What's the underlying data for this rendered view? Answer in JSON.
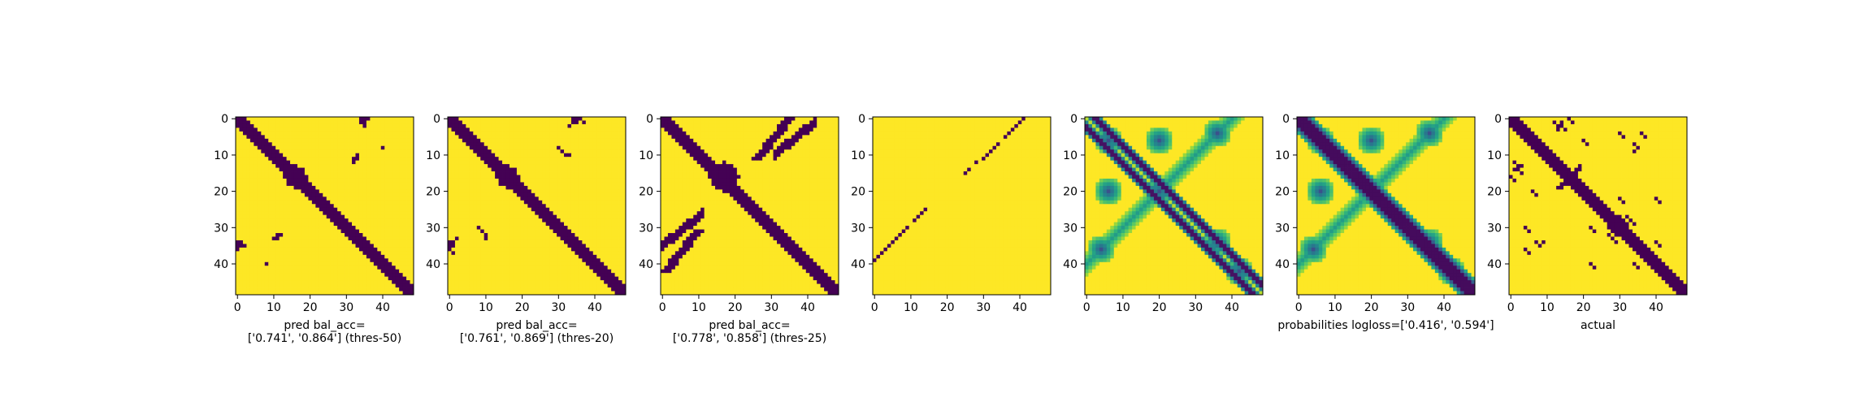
{
  "figure": {
    "background": "#ffffff",
    "colormap": "viridis",
    "matrix_size": 49
  },
  "chart_data": [
    {
      "type": "heatmap",
      "id": "panel-1",
      "xlabel_lines": [
        "pred bal_acc=",
        "['0.741', '0.864'] (thres-50)"
      ],
      "xticks": [
        0,
        10,
        20,
        30,
        40
      ],
      "yticks": [
        0,
        10,
        20,
        30,
        40
      ],
      "xlim": [
        0,
        48
      ],
      "ylim": [
        48,
        0
      ],
      "values_shape": [
        49,
        49
      ],
      "value_range": [
        0,
        1
      ],
      "description_values": {
        "diagonal_band_halfwidth": 2,
        "blobs": [
          {
            "row": 16,
            "col": 16,
            "r": 3
          }
        ],
        "secondary_points": [
          [
            0,
            35
          ],
          [
            0,
            36
          ],
          [
            1,
            34
          ],
          [
            1,
            35
          ],
          [
            10,
            33
          ],
          [
            11,
            32
          ],
          [
            8,
            40
          ],
          [
            34,
            0
          ],
          [
            35,
            1
          ],
          [
            36,
            0
          ],
          [
            35,
            2
          ],
          [
            33,
            11
          ],
          [
            32,
            12
          ]
        ]
      }
    },
    {
      "type": "heatmap",
      "id": "panel-2",
      "xlabel_lines": [
        "pred bal_acc=",
        "['0.761', '0.869'] (thres-20)"
      ],
      "xticks": [
        0,
        10,
        20,
        30,
        40
      ],
      "yticks": [
        0,
        10,
        20,
        30,
        40
      ],
      "xlim": [
        0,
        48
      ],
      "ylim": [
        48,
        0
      ],
      "values_shape": [
        49,
        49
      ],
      "value_range": [
        0,
        1
      ],
      "description_values": {
        "diagonal_band_halfwidth": 2,
        "blobs": [
          {
            "row": 16,
            "col": 16,
            "r": 3
          }
        ],
        "secondary_points": [
          [
            0,
            35
          ],
          [
            0,
            36
          ],
          [
            1,
            34
          ],
          [
            2,
            33
          ],
          [
            8,
            30
          ],
          [
            9,
            31
          ],
          [
            10,
            32
          ],
          [
            34,
            0
          ],
          [
            35,
            1
          ],
          [
            36,
            0
          ],
          [
            37,
            1
          ],
          [
            30,
            8
          ],
          [
            31,
            9
          ],
          [
            33,
            10
          ]
        ]
      }
    },
    {
      "type": "heatmap",
      "id": "panel-3",
      "xlabel_lines": [
        "pred bal_acc=",
        "['0.778', '0.858'] (thres-25)"
      ],
      "xticks": [
        0,
        10,
        20,
        30,
        40
      ],
      "yticks": [
        0,
        10,
        20,
        30,
        40
      ],
      "xlim": [
        0,
        48
      ],
      "ylim": [
        48,
        0
      ],
      "values_shape": [
        49,
        49
      ],
      "value_range": [
        0,
        1
      ],
      "description_values": {
        "diagonal_band_halfwidth": 2,
        "blobs": [
          {
            "row": 16,
            "col": 17,
            "r": 4
          }
        ],
        "antidiagonal_band": {
          "from": [
            0,
            35
          ],
          "to": [
            42,
            1
          ],
          "halfwidth": 1
        }
      }
    },
    {
      "type": "heatmap",
      "id": "panel-4",
      "xlabel_lines": [],
      "xticks": [
        0,
        10,
        20,
        30,
        40
      ],
      "yticks": [
        0,
        10,
        20,
        30,
        40
      ],
      "xlim": [
        0,
        48
      ],
      "ylim": [
        48,
        0
      ],
      "values_shape": [
        49,
        49
      ],
      "value_range": [
        0,
        1
      ],
      "description_values": {
        "antidiagonal_sparse_points": [
          [
            0,
            41
          ],
          [
            1,
            40
          ],
          [
            2,
            39
          ],
          [
            3,
            38
          ],
          [
            4,
            37
          ],
          [
            5,
            36
          ],
          [
            7,
            34
          ],
          [
            8,
            33
          ],
          [
            9,
            32
          ],
          [
            10,
            31
          ],
          [
            11,
            30
          ],
          [
            12,
            28
          ],
          [
            14,
            26
          ],
          [
            15,
            25
          ],
          [
            25,
            14
          ],
          [
            26,
            13
          ],
          [
            27,
            12
          ],
          [
            28,
            11
          ],
          [
            30,
            9
          ],
          [
            31,
            8
          ],
          [
            32,
            7
          ],
          [
            33,
            6
          ],
          [
            34,
            5
          ],
          [
            35,
            4
          ],
          [
            36,
            3
          ],
          [
            37,
            2
          ],
          [
            38,
            1
          ],
          [
            39,
            0
          ]
        ]
      }
    },
    {
      "type": "heatmap",
      "id": "panel-5",
      "xlabel_lines": [],
      "xticks": [
        0,
        10,
        20,
        30,
        40
      ],
      "yticks": [
        0,
        10,
        20,
        30,
        40
      ],
      "xlim": [
        0,
        48
      ],
      "ylim": [
        48,
        0
      ],
      "values_shape": [
        49,
        49
      ],
      "value_range": [
        0,
        1
      ],
      "description_values": {
        "style": "continuous",
        "two_parallel_diagonals": true
      }
    },
    {
      "type": "heatmap",
      "id": "panel-6",
      "xlabel_lines": [
        "probabilities logloss=['0.416', '0.594']"
      ],
      "xticks": [
        0,
        10,
        20,
        30,
        40
      ],
      "yticks": [
        0,
        10,
        20,
        30,
        40
      ],
      "xlim": [
        0,
        48
      ],
      "ylim": [
        48,
        0
      ],
      "values_shape": [
        49,
        49
      ],
      "value_range": [
        0,
        1
      ],
      "description_values": {
        "style": "continuous",
        "single_diagonal_band": true
      }
    },
    {
      "type": "heatmap",
      "id": "panel-7",
      "xlabel_lines": [
        "actual"
      ],
      "xticks": [
        0,
        10,
        20,
        30,
        40
      ],
      "yticks": [
        0,
        10,
        20,
        30,
        40
      ],
      "xlim": [
        0,
        48
      ],
      "ylim": [
        48,
        0
      ],
      "values_shape": [
        49,
        49
      ],
      "value_range": [
        0,
        1
      ],
      "description_values": {
        "style": "binary_scattered",
        "diagonal_band_halfwidth": 2
      }
    }
  ]
}
